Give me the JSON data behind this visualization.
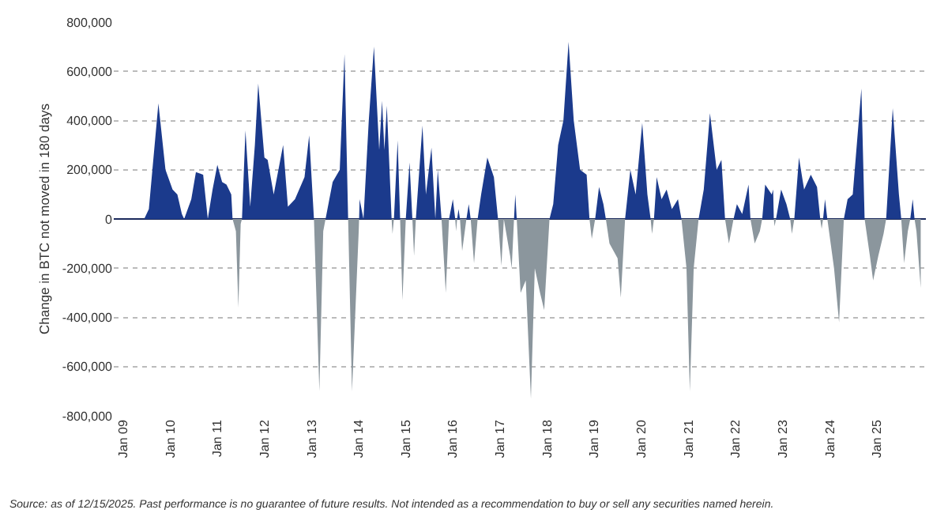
{
  "chart_data": {
    "type": "area",
    "ylabel": "Change in BTC not moved in 180 days",
    "x": [
      "2009-01-01",
      "2009-06-13",
      "2009-07-19",
      "2009-10-01",
      "2009-11-25",
      "2010-01-19",
      "2010-02-25",
      "2010-04-01",
      "2010-04-19",
      "2010-06-13",
      "2010-07-19",
      "2010-09-13",
      "2010-10-19",
      "2010-11-25",
      "2011-01-01",
      "2011-02-07",
      "2011-03-13",
      "2011-04-19",
      "2011-04-29",
      "2011-05-25",
      "2011-06-13",
      "2011-07-01",
      "2011-07-11",
      "2011-08-07",
      "2011-09-13",
      "2011-10-19",
      "2011-11-14",
      "2012-01-01",
      "2012-01-26",
      "2012-03-13",
      "2012-05-25",
      "2012-07-01",
      "2012-08-25",
      "2012-11-07",
      "2012-12-13",
      "2013-01-19",
      "2013-03-02",
      "2013-04-01",
      "2013-04-19",
      "2013-06-13",
      "2013-08-07",
      "2013-09-13",
      "2013-10-11",
      "2013-11-10",
      "2014-01-01",
      "2014-01-04",
      "2014-01-08",
      "2014-02-07",
      "2014-03-20",
      "2014-04-29",
      "2014-06-09",
      "2014-07-01",
      "2014-07-19",
      "2014-08-07",
      "2014-09-13",
      "2014-09-20",
      "2014-10-01",
      "2014-10-30",
      "2014-11-18",
      "2014-12-06",
      "2015-01-01",
      "2015-01-30",
      "2015-02-21",
      "2015-03-06",
      "2015-03-20",
      "2015-05-10",
      "2015-06-06",
      "2015-07-19",
      "2015-08-18",
      "2015-09-06",
      "2015-10-05",
      "2015-11-07",
      "2015-12-02",
      "2016-01-01",
      "2016-01-19",
      "2016-01-26",
      "2016-02-03",
      "2016-02-14",
      "2016-02-25",
      "2016-03-13",
      "2016-04-15",
      "2016-05-03",
      "2016-05-18",
      "2016-06-13",
      "2016-07-11",
      "2016-08-07",
      "2016-09-24",
      "2016-11-14",
      "2016-12-16",
      "2017-01-11",
      "2017-01-30",
      "2017-03-20",
      "2017-04-01",
      "2017-04-19",
      "2017-04-29",
      "2017-05-10",
      "2017-06-09",
      "2017-07-19",
      "2017-08-28",
      "2017-09-27",
      "2017-11-07",
      "2017-12-09",
      "2018-01-19",
      "2018-02-17",
      "2018-03-27",
      "2018-05-07",
      "2018-06-16",
      "2018-07-26",
      "2018-09-13",
      "2018-11-03",
      "2018-11-25",
      "2018-12-13",
      "2019-01-08",
      "2019-02-07",
      "2019-03-13",
      "2019-04-01",
      "2019-04-29",
      "2019-07-01",
      "2019-07-26",
      "2019-08-28",
      "2019-10-08",
      "2019-11-18",
      "2020-01-08",
      "2020-02-17",
      "2020-03-13",
      "2020-03-24",
      "2020-04-08",
      "2020-04-29",
      "2020-06-06",
      "2020-07-15",
      "2020-08-25",
      "2020-10-11",
      "2020-11-07",
      "2020-12-16",
      "2021-01-11",
      "2021-02-10",
      "2021-03-20",
      "2021-04-29",
      "2021-06-16",
      "2021-08-07",
      "2021-09-13",
      "2021-10-11",
      "2021-11-10",
      "2021-12-16",
      "2022-01-11",
      "2022-02-21",
      "2022-04-11",
      "2022-04-26",
      "2022-05-29",
      "2022-07-08",
      "2022-07-26",
      "2022-08-18",
      "2022-10-08",
      "2022-10-19",
      "2022-10-24",
      "2022-10-30",
      "2022-11-10",
      "2022-12-20",
      "2023-01-30",
      "2023-02-28",
      "2023-03-13",
      "2023-04-01",
      "2023-05-07",
      "2023-06-16",
      "2023-08-07",
      "2023-09-24",
      "2023-10-19",
      "2023-10-30",
      "2023-11-10",
      "2023-11-25",
      "2023-12-13",
      "2024-02-03",
      "2024-03-13",
      "2024-04-19",
      "2024-05-18",
      "2024-06-27",
      "2024-09-02",
      "2024-09-27",
      "2024-11-07",
      "2024-12-02",
      "2025-01-11",
      "2025-02-21",
      "2025-03-13",
      "2025-05-03",
      "2025-06-20",
      "2025-07-08",
      "2025-07-30",
      "2025-08-28",
      "2025-09-16",
      "2025-10-05",
      "2025-10-19",
      "2025-11-03",
      "2025-12-06"
    ],
    "series": [
      {
        "color": "#1b3a8c",
        "values": [
          0,
          0,
          40000,
          470000,
          200000,
          120000,
          100000,
          20000,
          0,
          80000,
          190000,
          180000,
          0,
          120000,
          220000,
          150000,
          140000,
          100000,
          0,
          null,
          null,
          null,
          0,
          360000,
          50000,
          300000,
          550000,
          250000,
          240000,
          100000,
          300000,
          50000,
          80000,
          170000,
          340000,
          0,
          null,
          null,
          0,
          150000,
          200000,
          670000,
          0,
          null,
          null,
          0,
          80000,
          0,
          400000,
          700000,
          280000,
          480000,
          280000,
          460000,
          0,
          null,
          0,
          320000,
          0,
          null,
          0,
          230000,
          0,
          null,
          0,
          380000,
          100000,
          290000,
          0,
          200000,
          0,
          null,
          0,
          80000,
          0,
          null,
          0,
          40000,
          0,
          null,
          0,
          60000,
          0,
          null,
          0,
          100000,
          250000,
          170000,
          0,
          null,
          0,
          null,
          null,
          0,
          100000,
          0,
          null,
          null,
          null,
          null,
          null,
          null,
          0,
          60000,
          300000,
          400000,
          720000,
          400000,
          200000,
          180000,
          0,
          null,
          0,
          130000,
          60000,
          0,
          null,
          null,
          null,
          0,
          200000,
          100000,
          390000,
          100000,
          0,
          null,
          0,
          170000,
          80000,
          120000,
          40000,
          80000,
          0,
          null,
          null,
          null,
          0,
          120000,
          430000,
          200000,
          240000,
          0,
          null,
          0,
          60000,
          20000,
          140000,
          0,
          null,
          null,
          0,
          140000,
          100000,
          120000,
          0,
          null,
          0,
          120000,
          60000,
          0,
          null,
          0,
          250000,
          120000,
          180000,
          130000,
          0,
          null,
          0,
          80000,
          0,
          null,
          null,
          0,
          80000,
          100000,
          530000,
          0,
          null,
          null,
          null,
          null,
          0,
          450000,
          100000,
          0,
          null,
          null,
          0,
          80000,
          0,
          null,
          null
        ]
      },
      {
        "color": "#8b969d",
        "values": [
          0,
          0,
          null,
          null,
          null,
          null,
          null,
          null,
          0,
          null,
          null,
          null,
          0,
          null,
          null,
          null,
          null,
          null,
          0,
          -50000,
          -360000,
          -20000,
          0,
          null,
          null,
          null,
          null,
          null,
          null,
          null,
          null,
          null,
          null,
          null,
          null,
          0,
          -700000,
          -50000,
          0,
          null,
          null,
          null,
          0,
          -700000,
          -50000,
          0,
          null,
          0,
          null,
          null,
          null,
          null,
          null,
          null,
          0,
          -60000,
          0,
          null,
          0,
          -330000,
          0,
          null,
          0,
          -150000,
          0,
          null,
          null,
          null,
          0,
          null,
          0,
          -300000,
          0,
          null,
          0,
          -50000,
          0,
          null,
          0,
          -130000,
          0,
          null,
          0,
          -180000,
          0,
          null,
          null,
          null,
          0,
          -190000,
          0,
          -150000,
          -200000,
          0,
          null,
          0,
          -300000,
          -250000,
          -730000,
          -200000,
          -300000,
          -370000,
          0,
          null,
          null,
          null,
          null,
          null,
          null,
          null,
          0,
          -80000,
          0,
          null,
          null,
          0,
          -100000,
          -160000,
          -320000,
          0,
          null,
          null,
          null,
          null,
          0,
          -60000,
          0,
          null,
          null,
          null,
          null,
          null,
          0,
          -200000,
          -700000,
          -200000,
          0,
          null,
          null,
          null,
          null,
          0,
          -100000,
          0,
          null,
          null,
          null,
          0,
          -100000,
          -50000,
          0,
          null,
          null,
          null,
          0,
          -30000,
          0,
          null,
          null,
          0,
          -60000,
          0,
          null,
          null,
          null,
          null,
          0,
          -40000,
          0,
          null,
          0,
          -200000,
          -420000,
          0,
          null,
          null,
          null,
          0,
          -150000,
          -250000,
          -150000,
          -60000,
          0,
          null,
          null,
          0,
          -180000,
          -50000,
          0,
          null,
          0,
          -50000,
          -280000
        ]
      }
    ],
    "xlim": [
      "2008-10-20",
      "2026-01-15"
    ],
    "xticks": [
      {
        "value": "2009-01-01",
        "label": "Jan 09"
      },
      {
        "value": "2010-01-01",
        "label": "Jan 10"
      },
      {
        "value": "2011-01-01",
        "label": "Jan 11"
      },
      {
        "value": "2012-01-01",
        "label": "Jan 12"
      },
      {
        "value": "2013-01-01",
        "label": "Jan 13"
      },
      {
        "value": "2014-01-01",
        "label": "Jan 14"
      },
      {
        "value": "2015-01-01",
        "label": "Jan 15"
      },
      {
        "value": "2016-01-01",
        "label": "Jan 16"
      },
      {
        "value": "2017-01-01",
        "label": "Jan 17"
      },
      {
        "value": "2018-01-01",
        "label": "Jan 18"
      },
      {
        "value": "2019-01-01",
        "label": "Jan 19"
      },
      {
        "value": "2020-01-01",
        "label": "Jan 20"
      },
      {
        "value": "2021-01-01",
        "label": "Jan 21"
      },
      {
        "value": "2022-01-01",
        "label": "Jan 22"
      },
      {
        "value": "2023-01-01",
        "label": "Jan 23"
      },
      {
        "value": "2024-01-01",
        "label": "Jan 24"
      },
      {
        "value": "2025-01-01",
        "label": "Jan 25"
      }
    ],
    "ylim": [
      -800000,
      800000
    ],
    "yticks": [
      {
        "value": -800000,
        "label": "-800,000"
      },
      {
        "value": -600000,
        "label": "-600,000"
      },
      {
        "value": -400000,
        "label": "-400,000"
      },
      {
        "value": -200000,
        "label": "-200,000"
      },
      0,
      {
        "value": 200000,
        "label": "200,000"
      },
      {
        "value": 400000,
        "label": "400,000"
      },
      {
        "value": 600000,
        "label": "600,000"
      },
      {
        "value": 800000,
        "label": "800,000"
      }
    ],
    "grid": "y",
    "annotations": [
      "Source: as of 12/15/2025. Past performance is no guarantee of future results. Not intended as a recommendation to buy or sell any securities named herein."
    ]
  }
}
